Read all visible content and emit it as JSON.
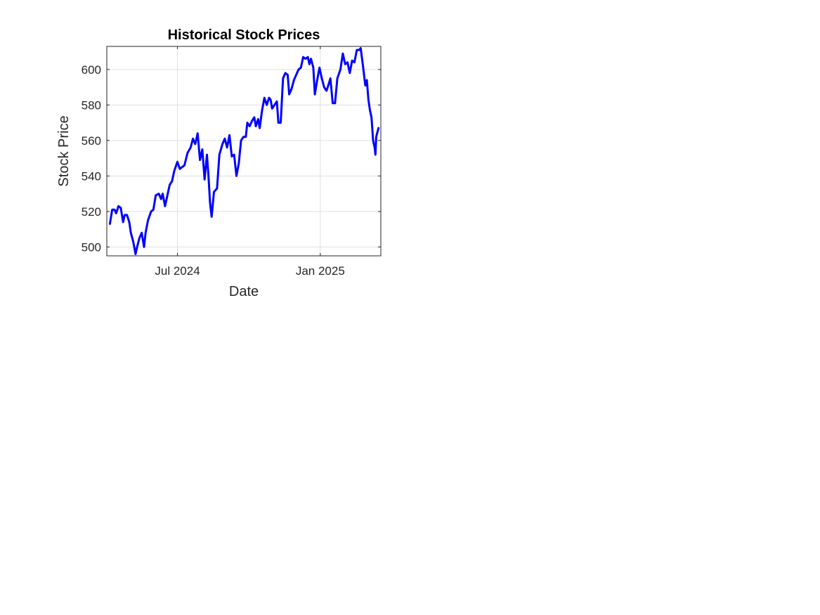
{
  "chart_data": {
    "type": "line",
    "title": "Historical Stock Prices",
    "xlabel": "Date",
    "ylabel": "Stock Price",
    "grid": true,
    "xlim": [
      "2024-04-01",
      "2025-03-20"
    ],
    "ylim": [
      495,
      613
    ],
    "yticks": [
      500,
      520,
      540,
      560,
      580,
      600
    ],
    "xticks": [
      {
        "date": "2024-07-01",
        "label": "Jul 2024"
      },
      {
        "date": "2025-01-01",
        "label": "Jan 2025"
      }
    ],
    "series": [
      {
        "color": "#0000ff",
        "points": [
          [
            "2024-04-05",
            513
          ],
          [
            "2024-04-08",
            521
          ],
          [
            "2024-04-11",
            521
          ],
          [
            "2024-04-13",
            519
          ],
          [
            "2024-04-16",
            523
          ],
          [
            "2024-04-19",
            522
          ],
          [
            "2024-04-22",
            514
          ],
          [
            "2024-04-24",
            518
          ],
          [
            "2024-04-27",
            518
          ],
          [
            "2024-04-30",
            514
          ],
          [
            "2024-05-02",
            508
          ],
          [
            "2024-05-05",
            503
          ],
          [
            "2024-05-08",
            496
          ],
          [
            "2024-05-10",
            500
          ],
          [
            "2024-05-13",
            505
          ],
          [
            "2024-05-16",
            508
          ],
          [
            "2024-05-19",
            500
          ],
          [
            "2024-05-21",
            508
          ],
          [
            "2024-05-24",
            515
          ],
          [
            "2024-05-28",
            520
          ],
          [
            "2024-05-31",
            521
          ],
          [
            "2024-06-03",
            529
          ],
          [
            "2024-06-07",
            530
          ],
          [
            "2024-06-10",
            527
          ],
          [
            "2024-06-12",
            530
          ],
          [
            "2024-06-15",
            523
          ],
          [
            "2024-06-18",
            529
          ],
          [
            "2024-06-21",
            535
          ],
          [
            "2024-06-24",
            537
          ],
          [
            "2024-06-27",
            543
          ],
          [
            "2024-07-01",
            548
          ],
          [
            "2024-07-04",
            544
          ],
          [
            "2024-07-07",
            545
          ],
          [
            "2024-07-10",
            546
          ],
          [
            "2024-07-14",
            553
          ],
          [
            "2024-07-18",
            556
          ],
          [
            "2024-07-21",
            561
          ],
          [
            "2024-07-24",
            558
          ],
          [
            "2024-07-27",
            564
          ],
          [
            "2024-07-30",
            549
          ],
          [
            "2024-08-02",
            555
          ],
          [
            "2024-08-05",
            538
          ],
          [
            "2024-08-08",
            552
          ],
          [
            "2024-08-10",
            540
          ],
          [
            "2024-08-12",
            525
          ],
          [
            "2024-08-14",
            517
          ],
          [
            "2024-08-17",
            531
          ],
          [
            "2024-08-21",
            533
          ],
          [
            "2024-08-24",
            552
          ],
          [
            "2024-08-28",
            558
          ],
          [
            "2024-08-31",
            561
          ],
          [
            "2024-09-03",
            556
          ],
          [
            "2024-09-06",
            563
          ],
          [
            "2024-09-09",
            551
          ],
          [
            "2024-09-12",
            552
          ],
          [
            "2024-09-15",
            540
          ],
          [
            "2024-09-18",
            547
          ],
          [
            "2024-09-21",
            560
          ],
          [
            "2024-09-24",
            562
          ],
          [
            "2024-09-27",
            562
          ],
          [
            "2024-09-29",
            570
          ],
          [
            "2024-10-02",
            568
          ],
          [
            "2024-10-05",
            571
          ],
          [
            "2024-10-08",
            573
          ],
          [
            "2024-10-10",
            568
          ],
          [
            "2024-10-13",
            572
          ],
          [
            "2024-10-15",
            567
          ],
          [
            "2024-10-18",
            577
          ],
          [
            "2024-10-21",
            584
          ],
          [
            "2024-10-24",
            580
          ],
          [
            "2024-10-27",
            584
          ],
          [
            "2024-10-29",
            583
          ],
          [
            "2024-10-31",
            578
          ],
          [
            "2024-11-03",
            580
          ],
          [
            "2024-11-06",
            582
          ],
          [
            "2024-11-08",
            570
          ],
          [
            "2024-11-11",
            570
          ],
          [
            "2024-11-14",
            595
          ],
          [
            "2024-11-17",
            598
          ],
          [
            "2024-11-20",
            597
          ],
          [
            "2024-11-22",
            586
          ],
          [
            "2024-11-25",
            589
          ],
          [
            "2024-11-28",
            594
          ],
          [
            "2024-12-01",
            597
          ],
          [
            "2024-12-04",
            600
          ],
          [
            "2024-12-07",
            601
          ],
          [
            "2024-12-10",
            607
          ],
          [
            "2024-12-13",
            606
          ],
          [
            "2024-12-16",
            607
          ],
          [
            "2024-12-18",
            603
          ],
          [
            "2024-12-20",
            606
          ],
          [
            "2024-12-23",
            601
          ],
          [
            "2024-12-25",
            586
          ],
          [
            "2024-12-28",
            594
          ],
          [
            "2024-12-31",
            601
          ],
          [
            "2025-01-03",
            595
          ],
          [
            "2025-01-06",
            590
          ],
          [
            "2025-01-09",
            588
          ],
          [
            "2025-01-12",
            592
          ],
          [
            "2025-01-14",
            595
          ],
          [
            "2025-01-17",
            581
          ],
          [
            "2025-01-20",
            581
          ],
          [
            "2025-01-23",
            595
          ],
          [
            "2025-01-27",
            600
          ],
          [
            "2025-01-30",
            609
          ],
          [
            "2025-02-02",
            603
          ],
          [
            "2025-02-05",
            604
          ],
          [
            "2025-02-08",
            598
          ],
          [
            "2025-02-11",
            605
          ],
          [
            "2025-02-14",
            604
          ],
          [
            "2025-02-17",
            611
          ],
          [
            "2025-02-20",
            611
          ],
          [
            "2025-02-22",
            612
          ],
          [
            "2025-02-25",
            602
          ],
          [
            "2025-02-28",
            591
          ],
          [
            "2025-03-02",
            594
          ],
          [
            "2025-03-04",
            583
          ],
          [
            "2025-03-06",
            577
          ],
          [
            "2025-03-08",
            573
          ],
          [
            "2025-03-10",
            560
          ],
          [
            "2025-03-12",
            556
          ],
          [
            "2025-03-13",
            552
          ],
          [
            "2025-03-14",
            562
          ],
          [
            "2025-03-17",
            567
          ]
        ]
      }
    ]
  }
}
